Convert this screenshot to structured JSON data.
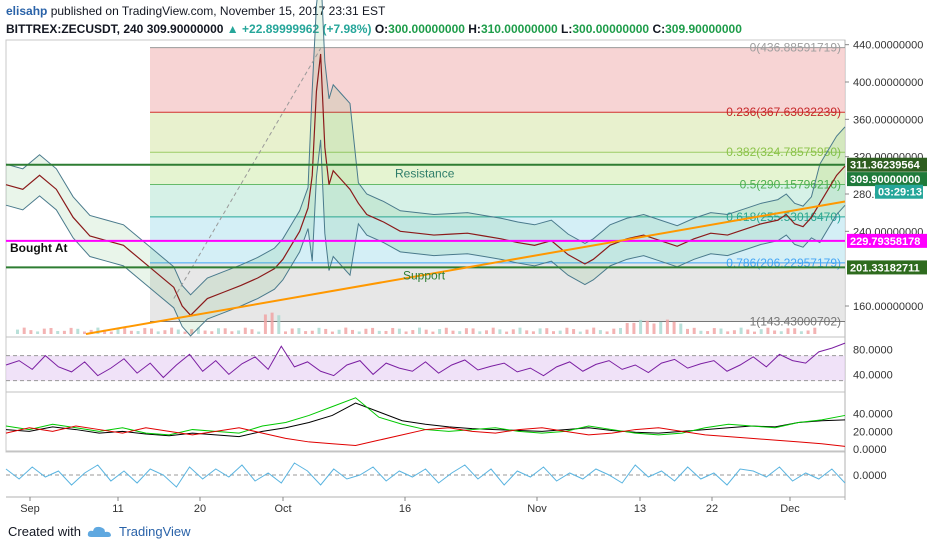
{
  "header": {
    "author": "elisahp",
    "published_text": "published on TradingView.com, November 15, 2017 23:31 EST",
    "symbol": "BITTREX:ZECUSDT, 240",
    "last_price": "309.90000000",
    "change": "+22.89999962 (+7.98%)",
    "open_label": "O:",
    "open": "300.00000000",
    "high_label": "H:",
    "high": "310.00000000",
    "low_label": "L:",
    "low": "300.00000000",
    "close_label": "C:",
    "close": "309.90000000"
  },
  "footer": {
    "created_with": "Created with",
    "brand": "TradingView"
  },
  "colors": {
    "up": "#26a69a",
    "fib_orange": "#ff9800",
    "magenta": "#ff00ff",
    "support_green": "#2e7d32",
    "rsi_purple": "#7b1fa2"
  },
  "chart_data": {
    "type": "line",
    "main": {
      "price_ticks": [
        "440.00000000",
        "400.00000000",
        "360.00000000",
        "320.00000000",
        "280.00000000",
        "240.00000000",
        "160.00000000"
      ],
      "fib_levels": [
        {
          "label": "0(436.88591719)",
          "value": 436.886
        },
        {
          "label": "0.236(367.63032239)",
          "value": 367.63
        },
        {
          "label": "0.382(324.78575950)",
          "value": 324.786
        },
        {
          "label": "0.5(290.15796210)",
          "value": 290.158
        },
        {
          "label": "0.618(255.53016470)",
          "value": 255.53
        },
        {
          "label": "0.786(206.22957179)",
          "value": 206.23
        },
        {
          "label": "1(143.43000702)",
          "value": 143.43
        }
      ],
      "price_badges": [
        {
          "label": "311.36239564",
          "value": 311.36
        },
        {
          "label": "309.90000000",
          "value": 309.9
        },
        {
          "label": "03:29:13",
          "value": 291
        },
        {
          "label": "229.79358178",
          "value": 229.79
        },
        {
          "label": "201.33182711",
          "value": 201.33
        }
      ],
      "annotations": {
        "resistance": "Resistance",
        "support": "Support",
        "bought_at": "Bought At"
      },
      "horizontal_lines": {
        "resistance": 311.36,
        "bought_at": 229.79,
        "support": 201.33
      },
      "trendline": {
        "from": [
          0,
          130
        ],
        "to": [
          1,
          272
        ]
      },
      "price_path": [
        [
          0.0,
          290
        ],
        [
          0.02,
          285
        ],
        [
          0.04,
          300
        ],
        [
          0.06,
          285
        ],
        [
          0.08,
          255
        ],
        [
          0.1,
          235
        ],
        [
          0.12,
          230
        ],
        [
          0.14,
          225
        ],
        [
          0.16,
          210
        ],
        [
          0.18,
          195
        ],
        [
          0.2,
          180
        ],
        [
          0.21,
          160
        ],
        [
          0.22,
          150
        ],
        [
          0.24,
          168
        ],
        [
          0.26,
          175
        ],
        [
          0.28,
          182
        ],
        [
          0.3,
          190
        ],
        [
          0.32,
          200
        ],
        [
          0.33,
          210
        ],
        [
          0.34,
          225
        ],
        [
          0.35,
          240
        ],
        [
          0.36,
          265
        ],
        [
          0.365,
          300
        ],
        [
          0.37,
          390
        ],
        [
          0.375,
          430
        ],
        [
          0.38,
          330
        ],
        [
          0.385,
          290
        ],
        [
          0.39,
          305
        ],
        [
          0.4,
          295
        ],
        [
          0.41,
          285
        ],
        [
          0.42,
          270
        ],
        [
          0.43,
          258
        ],
        [
          0.45,
          250
        ],
        [
          0.47,
          240
        ],
        [
          0.49,
          238
        ],
        [
          0.51,
          236
        ],
        [
          0.53,
          237
        ],
        [
          0.55,
          238
        ],
        [
          0.57,
          235
        ],
        [
          0.59,
          232
        ],
        [
          0.61,
          228
        ],
        [
          0.63,
          225
        ],
        [
          0.65,
          230
        ],
        [
          0.67,
          215
        ],
        [
          0.69,
          205
        ],
        [
          0.7,
          210
        ],
        [
          0.72,
          225
        ],
        [
          0.74,
          232
        ],
        [
          0.76,
          236
        ],
        [
          0.78,
          230
        ],
        [
          0.8,
          224
        ],
        [
          0.82,
          232
        ],
        [
          0.84,
          238
        ],
        [
          0.86,
          236
        ],
        [
          0.88,
          242
        ],
        [
          0.9,
          248
        ],
        [
          0.92,
          252
        ],
        [
          0.93,
          258
        ],
        [
          0.94,
          248
        ],
        [
          0.95,
          245
        ],
        [
          0.96,
          255
        ],
        [
          0.97,
          270
        ],
        [
          0.98,
          285
        ],
        [
          0.99,
          300
        ],
        [
          1.0,
          309.9
        ]
      ],
      "x_ticks": [
        "Sep",
        "11",
        "20",
        "Oct",
        "16",
        "Nov",
        "13",
        "22",
        "Dec"
      ]
    },
    "rsi": {
      "ticks": [
        "80.0000",
        "40.0000"
      ],
      "levels": [
        70,
        30
      ],
      "range": [
        15,
        95
      ],
      "values": [
        55,
        62,
        48,
        70,
        52,
        44,
        60,
        38,
        50,
        65,
        42,
        58,
        35,
        55,
        72,
        45,
        62,
        40,
        57,
        68,
        48,
        85,
        52,
        60,
        45,
        38,
        55,
        62,
        40,
        58,
        50,
        45,
        60,
        42,
        55,
        63,
        47,
        53,
        58,
        44,
        50,
        38,
        52,
        60,
        45,
        56,
        62,
        48,
        55,
        43,
        58,
        64,
        50,
        57,
        62,
        45,
        55,
        68,
        52,
        72,
        62,
        58,
        76,
        82,
        90
      ]
    },
    "dmi": {
      "ticks": [
        "40.0000",
        "20.0000",
        "0.0000"
      ],
      "range": [
        0,
        60
      ],
      "series": [
        {
          "values": [
            22,
            20,
            25,
            22,
            18,
            20,
            17,
            15,
            18,
            16,
            14,
            20,
            24,
            30,
            38,
            52,
            42,
            32,
            28,
            25,
            23,
            22,
            21,
            20,
            22,
            24,
            21,
            19,
            18,
            20,
            22,
            24,
            26,
            25,
            30,
            32,
            33
          ]
        },
        {
          "values": [
            26,
            22,
            28,
            24,
            20,
            24,
            18,
            16,
            22,
            20,
            18,
            26,
            30,
            38,
            48,
            58,
            36,
            28,
            22,
            20,
            22,
            24,
            20,
            18,
            20,
            26,
            22,
            18,
            16,
            18,
            24,
            28,
            26,
            24,
            30,
            33,
            38
          ]
        },
        {
          "values": [
            18,
            24,
            20,
            26,
            22,
            18,
            24,
            20,
            16,
            20,
            24,
            18,
            12,
            8,
            6,
            4,
            10,
            16,
            22,
            24,
            20,
            18,
            22,
            24,
            20,
            16,
            18,
            22,
            24,
            20,
            16,
            14,
            12,
            10,
            8,
            6,
            3
          ]
        }
      ]
    },
    "osc": {
      "ticks": [
        "0.0000"
      ],
      "range": [
        -1,
        1
      ],
      "values": [
        0.3,
        -0.2,
        0.4,
        -0.1,
        0.2,
        -0.5,
        0.1,
        0.5,
        -0.3,
        0.2,
        -0.4,
        0.3,
        0.0,
        -0.6,
        0.4,
        -0.2,
        0.3,
        -0.1,
        0.5,
        -0.3,
        0.1,
        -0.4,
        0.6,
        0.2,
        -0.5,
        0.3,
        -0.2,
        0.0,
        0.4,
        -0.3,
        0.2,
        -0.1,
        0.3,
        -0.4,
        0.1,
        0.5,
        -0.2,
        0.3,
        -0.5,
        0.2,
        -0.1,
        0.4,
        -0.3,
        0.1,
        -0.2,
        0.3,
        0.0,
        -0.4,
        0.5,
        -0.1,
        0.2,
        -0.3,
        0.4,
        -0.2,
        0.1,
        -0.5,
        0.3,
        0.2,
        -0.1,
        0.4,
        -0.3,
        0.1,
        -0.2,
        0.3,
        -0.4
      ]
    }
  }
}
